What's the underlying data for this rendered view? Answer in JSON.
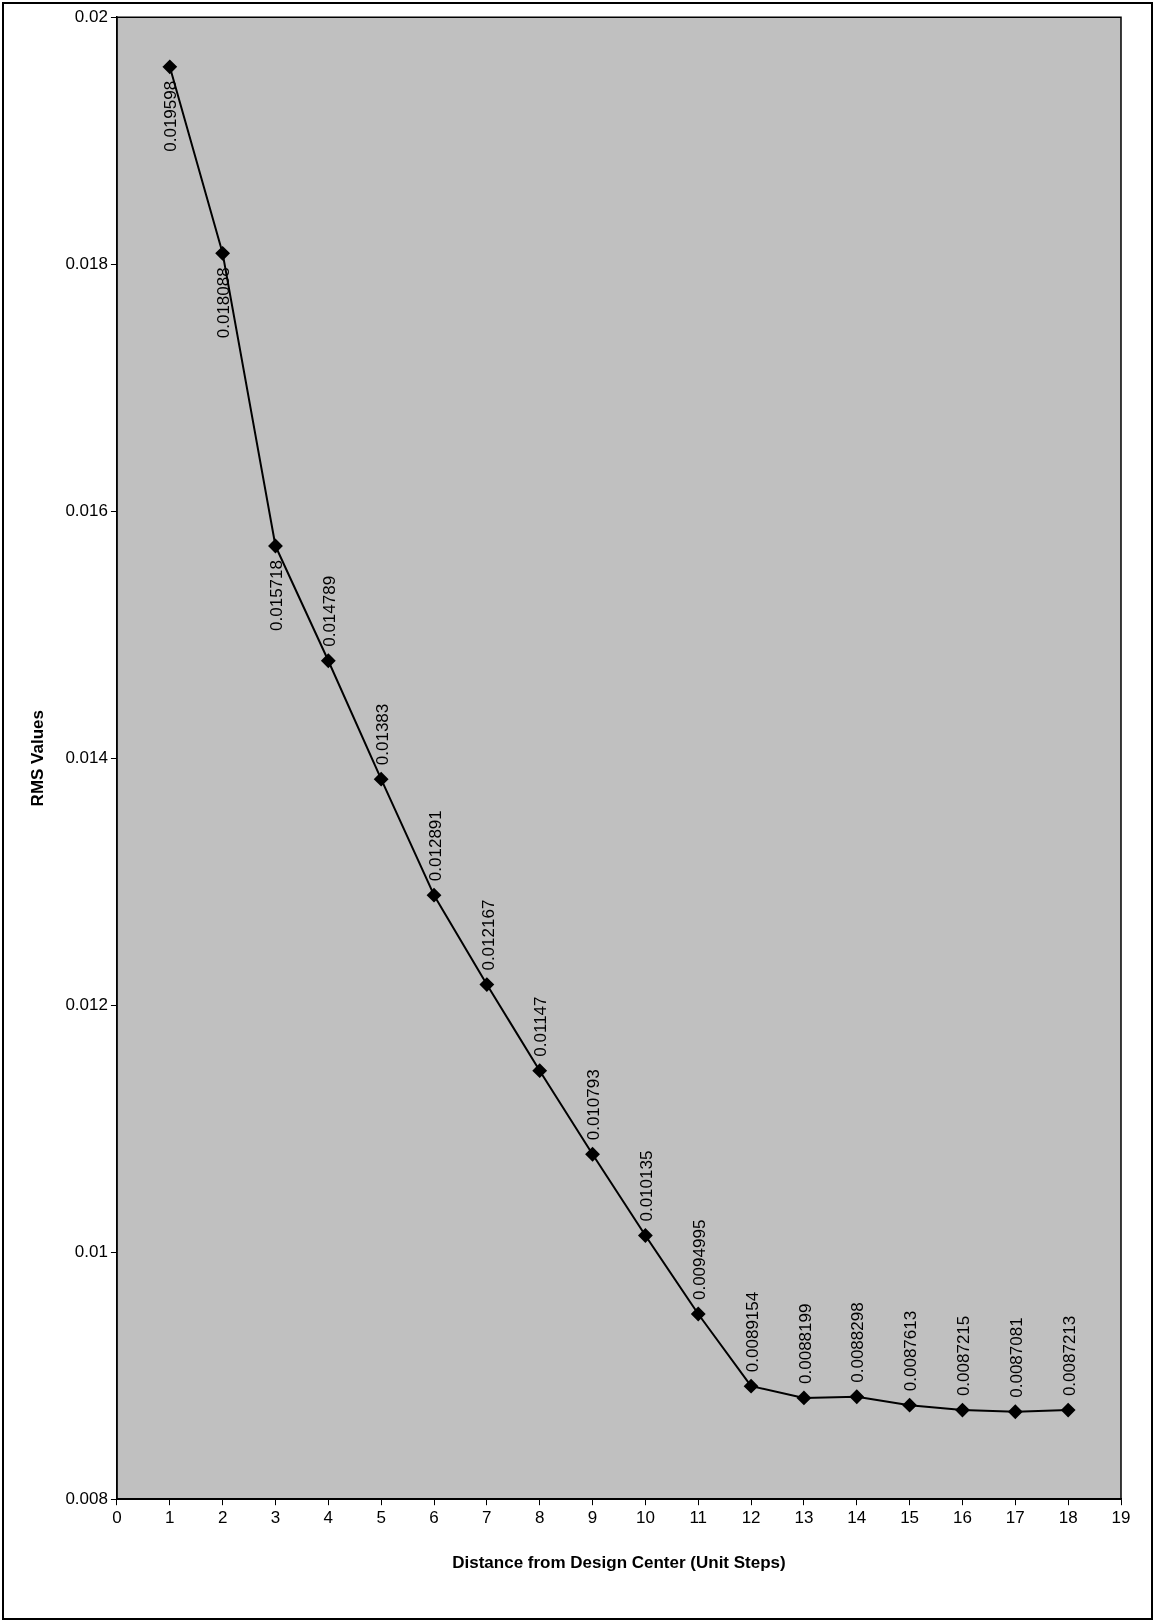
{
  "chart_data": {
    "type": "line",
    "xlabel": "Distance from Design Center (Unit Steps)",
    "ylabel": "RMS Values",
    "x": [
      1,
      2,
      3,
      4,
      5,
      6,
      7,
      8,
      9,
      10,
      11,
      12,
      13,
      14,
      15,
      16,
      17,
      18
    ],
    "series": [
      {
        "color": "#000000",
        "values": [
          0.019598,
          0.018088,
          0.015718,
          0.014789,
          0.01383,
          0.012891,
          0.012167,
          0.01147,
          0.010793,
          0.010135,
          0.0094995,
          0.0089154,
          0.0088199,
          0.0088298,
          0.0087613,
          0.0087215,
          0.0087081,
          0.0087213
        ]
      }
    ],
    "xlim": [
      0,
      19
    ],
    "xticks": [
      0,
      1,
      2,
      3,
      4,
      5,
      6,
      7,
      8,
      9,
      10,
      11,
      12,
      13,
      14,
      15,
      16,
      17,
      18,
      19
    ],
    "ylim": [
      0.008,
      0.02
    ],
    "yticks": [
      0.008,
      0.01,
      0.012,
      0.014,
      0.016,
      0.018,
      0.02
    ],
    "grid": false,
    "legend": false,
    "marker": "diamond",
    "line_style": "solid",
    "data_labels": true
  }
}
